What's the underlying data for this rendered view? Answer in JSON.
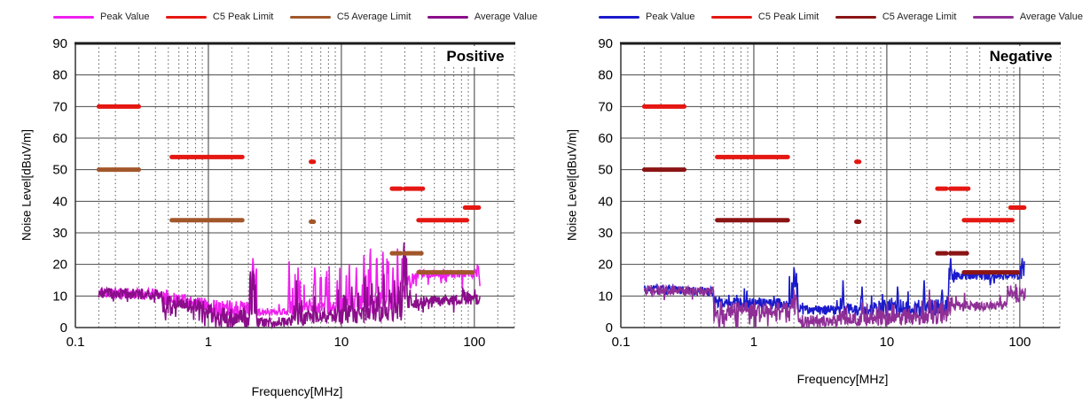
{
  "chart_data": [
    {
      "id": "positive",
      "type": "line",
      "title": "Positive",
      "xlabel": "Frequency[MHz]",
      "ylabel": "Noise Level[dBuV/m]",
      "x_scale": "log",
      "x_range": [
        0.1,
        200
      ],
      "x_tick_values": [
        0.1,
        1,
        10,
        100
      ],
      "x_tick_labels": [
        "0.1",
        "1",
        "10",
        "100"
      ],
      "y_range": [
        0,
        90
      ],
      "y_tick_step": 10,
      "grid": {
        "major_color": "#4a4a4a",
        "minor_color": "#5a5a5a",
        "minor_style": "dashed"
      },
      "legend": [
        {
          "label": "Peak Value",
          "color": "#ef1fef"
        },
        {
          "label": "C5 Peak Limit",
          "color": "#e51712"
        },
        {
          "label": "C5 Average Limit",
          "color": "#a2572b"
        },
        {
          "label": "Average Value",
          "color": "#8a0d8a"
        }
      ],
      "limits": {
        "peak": {
          "color": "#e51712",
          "segments": [
            [
              0.15,
              0.3,
              70
            ],
            [
              0.53,
              1.8,
              54
            ],
            [
              5.9,
              6.2,
              52.5
            ],
            [
              24,
              28,
              44
            ],
            [
              30,
              41,
              44
            ],
            [
              38,
              88,
              34
            ],
            [
              85,
              108,
              38
            ]
          ]
        },
        "average": {
          "color": "#a2572b",
          "segments": [
            [
              0.15,
              0.3,
              50
            ],
            [
              0.53,
              1.8,
              34
            ],
            [
              5.9,
              6.2,
              33.5
            ],
            [
              24,
              28,
              23.5
            ],
            [
              30,
              40,
              23.5
            ],
            [
              38,
              97,
              17.5
            ]
          ]
        }
      },
      "traces": [
        {
          "name": "Peak Value",
          "color": "#ef1fef",
          "seed": 11,
          "envelope": [
            [
              0.15,
              0.45,
              11,
              10.5,
              1.8,
              0,
              0
            ],
            [
              0.45,
              1.05,
              9.5,
              7,
              2.2,
              3,
              0.08
            ],
            [
              1.05,
              2.05,
              6.5,
              6,
              2.5,
              -4,
              0.15
            ],
            [
              2.05,
              2.3,
              6,
              6,
              2,
              14,
              0.5
            ],
            [
              2.3,
              4.1,
              5,
              5,
              1.2,
              2,
              0.04
            ],
            [
              4.1,
              5.2,
              6,
              6,
              2.5,
              13,
              0.18
            ],
            [
              5.2,
              7.2,
              7,
              6.5,
              2,
              11,
              0.12
            ],
            [
              7.2,
              10,
              6,
              6,
              2.2,
              12,
              0.12
            ],
            [
              10,
              29,
              7,
              8.5,
              3.5,
              13,
              0.1
            ],
            [
              29,
              31,
              11,
              13,
              4,
              9,
              0.3
            ],
            [
              31,
              37,
              14,
              15.5,
              2.5,
              4,
              0.1
            ],
            [
              37,
              105,
              17,
              17,
              1.3,
              -4,
              0.06
            ],
            [
              105,
              110,
              16,
              14,
              2,
              4,
              0.3
            ]
          ],
          "spikes": [
            [
              2.17,
              22
            ],
            [
              4.05,
              21
            ],
            [
              4.75,
              19
            ],
            [
              6.3,
              19
            ],
            [
              7.6,
              16
            ],
            [
              9.3,
              15
            ],
            [
              11.5,
              20
            ],
            [
              13,
              19
            ],
            [
              14.8,
              23
            ],
            [
              16.5,
              25
            ],
            [
              18.5,
              22
            ],
            [
              20.5,
              24
            ],
            [
              22.5,
              21
            ],
            [
              24.5,
              19
            ],
            [
              26.5,
              25
            ],
            [
              28.5,
              22
            ],
            [
              30.5,
              23
            ]
          ]
        },
        {
          "name": "Average Value",
          "color": "#8a0d8a",
          "seed": 23,
          "envelope": [
            [
              0.15,
              0.45,
              11,
              10.5,
              1.8,
              -2,
              0.05
            ],
            [
              0.45,
              1.05,
              8.5,
              6,
              2.2,
              -5,
              0.15
            ],
            [
              1.05,
              2.05,
              4,
              3.5,
              2.5,
              -3.5,
              0.3
            ],
            [
              2.05,
              2.3,
              5,
              5,
              2,
              11,
              0.5
            ],
            [
              2.3,
              4.1,
              1.8,
              1.8,
              1.5,
              -1.5,
              0.2
            ],
            [
              4.1,
              5.2,
              2.5,
              2.5,
              2,
              7,
              0.15
            ],
            [
              5.2,
              10,
              3,
              3,
              2,
              4,
              0.1
            ],
            [
              10,
              29,
              4,
              5,
              3,
              7,
              0.12
            ],
            [
              29,
              31,
              8,
              9,
              4,
              12,
              0.3
            ],
            [
              31,
              37,
              8,
              8,
              2,
              3,
              0.1
            ],
            [
              37,
              80,
              8.5,
              9,
              1.5,
              -3,
              0.1
            ],
            [
              80,
              110,
              9.5,
              9,
              2,
              3,
              0.15
            ]
          ],
          "spikes": [
            [
              2.17,
              18
            ],
            [
              4.6,
              15
            ],
            [
              6.3,
              10
            ],
            [
              9.5,
              12
            ],
            [
              12,
              13
            ],
            [
              15,
              16
            ],
            [
              17,
              14
            ],
            [
              19,
              13
            ],
            [
              21,
              17
            ],
            [
              23,
              12
            ],
            [
              25,
              15
            ],
            [
              27,
              13
            ],
            [
              29.5,
              27
            ],
            [
              33,
              12
            ]
          ]
        }
      ]
    },
    {
      "id": "negative",
      "type": "line",
      "title": "Negative",
      "xlabel": "Frequency[MHz]",
      "ylabel": "Noise Level[dBuV/m]",
      "x_scale": "log",
      "x_range": [
        0.1,
        200
      ],
      "x_tick_values": [
        0.1,
        1,
        10,
        100
      ],
      "x_tick_labels": [
        "0.1",
        "1",
        "10",
        "100"
      ],
      "y_range": [
        0,
        90
      ],
      "y_tick_step": 10,
      "grid": {
        "major_color": "#4a4a4a",
        "minor_color": "#5a5a5a",
        "minor_style": "dashed"
      },
      "legend": [
        {
          "label": "Peak Value",
          "color": "#1a1acc"
        },
        {
          "label": "C5 Peak Limit",
          "color": "#e51712"
        },
        {
          "label": "C5 Average Limit",
          "color": "#8b1414"
        },
        {
          "label": "Average Value",
          "color": "#8f2f96"
        }
      ],
      "limits": {
        "peak": {
          "color": "#e51712",
          "segments": [
            [
              0.15,
              0.3,
              70
            ],
            [
              0.53,
              1.8,
              54
            ],
            [
              5.9,
              6.2,
              52.5
            ],
            [
              24,
              28,
              44
            ],
            [
              30,
              41,
              44
            ],
            [
              38,
              88,
              34
            ],
            [
              85,
              108,
              38
            ]
          ]
        },
        "average": {
          "color": "#8b1414",
          "segments": [
            [
              0.15,
              0.3,
              50
            ],
            [
              0.53,
              1.8,
              34
            ],
            [
              5.9,
              6.2,
              33.5
            ],
            [
              24,
              28,
              23.5
            ],
            [
              30,
              40,
              23.5
            ],
            [
              38,
              97,
              17.5
            ]
          ]
        }
      },
      "traces": [
        {
          "name": "Peak Value",
          "color": "#1a1acc",
          "seed": 31,
          "envelope": [
            [
              0.15,
              0.5,
              12,
              11.5,
              1.5,
              0,
              0
            ],
            [
              0.5,
              1.85,
              8,
              7.5,
              1.8,
              3,
              0.07
            ],
            [
              1.85,
              2.15,
              9,
              9,
              2,
              8,
              0.5
            ],
            [
              2.15,
              4.4,
              5.5,
              5.5,
              1.5,
              2,
              0.05
            ],
            [
              4.4,
              5,
              6,
              6,
              2,
              7,
              0.2
            ],
            [
              5,
              8,
              5.5,
              5.5,
              2,
              6,
              0.1
            ],
            [
              8,
              29,
              6,
              6.5,
              2.8,
              6,
              0.08
            ],
            [
              29,
              31,
              14,
              16,
              3,
              5,
              0.4
            ],
            [
              31,
              100,
              16.5,
              16.5,
              1.4,
              -4,
              0.06
            ],
            [
              100,
              108,
              17,
              17,
              2,
              4,
              0.4
            ]
          ],
          "spikes": [
            [
              2.0,
              19
            ],
            [
              4.7,
              15
            ],
            [
              6.5,
              13
            ],
            [
              12,
              13
            ],
            [
              19,
              15
            ],
            [
              26,
              12
            ],
            [
              30.3,
              22
            ],
            [
              104,
              22
            ]
          ]
        },
        {
          "name": "Average Value",
          "color": "#8f2f96",
          "seed": 47,
          "envelope": [
            [
              0.15,
              0.5,
              12,
              11.5,
              1.5,
              -2,
              0.05
            ],
            [
              0.5,
              1.85,
              6,
              5.5,
              2.5,
              -5,
              0.2
            ],
            [
              1.85,
              2.15,
              6,
              6,
              2,
              5,
              0.4
            ],
            [
              2.15,
              4.4,
              2.2,
              2.2,
              1.8,
              -2,
              0.2
            ],
            [
              4.4,
              8,
              2.5,
              2.5,
              2,
              3.5,
              0.1
            ],
            [
              8,
              29,
              3,
              3.5,
              2.5,
              4.5,
              0.1
            ],
            [
              29,
              31,
              5,
              6,
              2,
              4,
              0.3
            ],
            [
              31,
              80,
              6.5,
              7,
              1.5,
              3,
              0.08
            ],
            [
              80,
              110,
              9,
              10,
              2,
              3,
              0.2
            ]
          ],
          "spikes": [
            [
              2.0,
              12
            ],
            [
              6.5,
              8
            ],
            [
              21,
              12
            ],
            [
              104,
              12
            ]
          ]
        }
      ]
    }
  ]
}
